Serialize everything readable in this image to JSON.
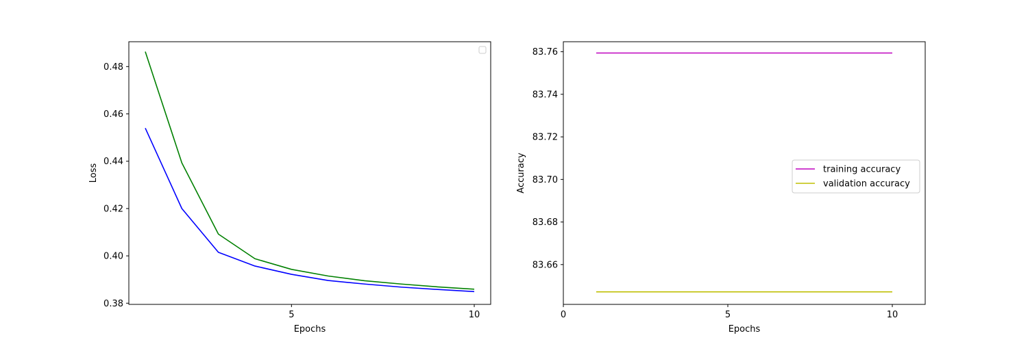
{
  "chart_data": [
    {
      "type": "line",
      "title": "",
      "xlabel": "Epochs",
      "ylabel": "Loss",
      "xlim": [
        0.55,
        10.45
      ],
      "ylim": [
        0.3795,
        0.4905
      ],
      "xticks": [
        5,
        10
      ],
      "yticks": [
        0.38,
        0.4,
        0.42,
        0.44,
        0.46,
        0.48
      ],
      "ytick_decimals": 2,
      "grid": false,
      "legend": {
        "placement": "top-right",
        "entries": []
      },
      "x": [
        1,
        2,
        3,
        4,
        5,
        6,
        7,
        8,
        9,
        10
      ],
      "series": [
        {
          "color": "#0000ff",
          "values": [
            0.454,
            0.42,
            0.4015,
            0.3957,
            0.3922,
            0.3896,
            0.3881,
            0.3868,
            0.3858,
            0.3849
          ]
        },
        {
          "color": "#008000",
          "values": [
            0.4863,
            0.4393,
            0.4092,
            0.3988,
            0.3943,
            0.3915,
            0.3895,
            0.3881,
            0.3869,
            0.3859
          ]
        }
      ]
    },
    {
      "type": "line",
      "title": "",
      "xlabel": "Epochs",
      "ylabel": "Accuracy",
      "xlim": [
        0,
        11
      ],
      "ylim": [
        83.6413,
        83.7647
      ],
      "xticks": [
        0,
        5,
        10
      ],
      "yticks": [
        83.66,
        83.68,
        83.7,
        83.72,
        83.74,
        83.76
      ],
      "ytick_decimals": 2,
      "grid": false,
      "legend": {
        "placement": "center-right",
        "entries": [
          "training accuracy",
          "validation accuracy"
        ]
      },
      "x": [
        1,
        2,
        3,
        4,
        5,
        6,
        7,
        8,
        9,
        10
      ],
      "series": [
        {
          "name": "training accuracy",
          "color": "#bf00bf",
          "values": [
            83.7594,
            83.7594,
            83.7594,
            83.7594,
            83.7594,
            83.7594,
            83.7594,
            83.7594,
            83.7594,
            83.7594
          ]
        },
        {
          "name": "validation accuracy",
          "color": "#bfbf00",
          "values": [
            83.6472,
            83.6472,
            83.6472,
            83.6472,
            83.6472,
            83.6472,
            83.6472,
            83.6472,
            83.6472,
            83.6472
          ]
        }
      ]
    }
  ]
}
